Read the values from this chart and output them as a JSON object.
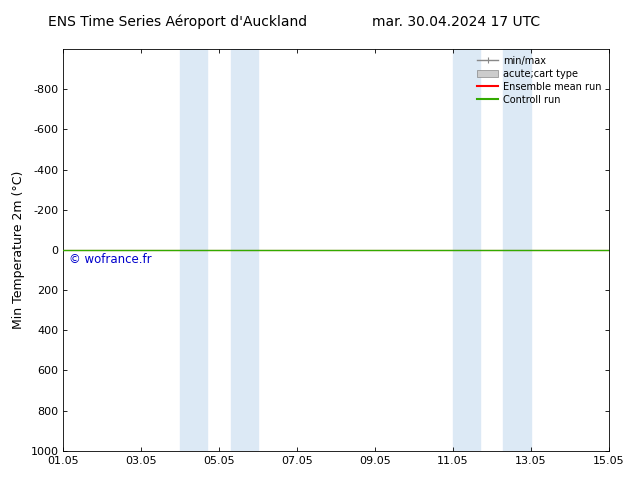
{
  "title_left": "ENS Time Series Aéroport d'Auckland",
  "title_right": "mar. 30.04.2024 17 UTC",
  "ylabel": "Min Temperature 2m (°C)",
  "ylim_top": -1000,
  "ylim_bottom": 1000,
  "xlim": [
    0,
    14
  ],
  "xtick_positions": [
    0,
    2,
    4,
    6,
    8,
    10,
    12,
    14
  ],
  "xtick_labels": [
    "01.05",
    "03.05",
    "05.05",
    "07.05",
    "09.05",
    "11.05",
    "13.05",
    "15.05"
  ],
  "ytick_positions": [
    -800,
    -600,
    -400,
    -200,
    0,
    200,
    400,
    600,
    800,
    1000
  ],
  "ytick_labels": [
    "-800",
    "-600",
    "-400",
    "-200",
    "0",
    "200",
    "400",
    "600",
    "800",
    "1000"
  ],
  "blue_bands": [
    [
      3.0,
      3.7
    ],
    [
      4.3,
      5.0
    ],
    [
      10.0,
      10.7
    ],
    [
      11.3,
      12.0
    ]
  ],
  "blue_band_color": "#dce9f5",
  "green_line_y": 0,
  "green_line_color": "#33aa00",
  "red_line_color": "#ff0000",
  "copyright_text": "© wofrance.fr",
  "copyright_color": "#0000cc",
  "background_color": "#ffffff",
  "legend_labels": [
    "min/max",
    "acute;cart type",
    "Ensemble mean run",
    "Controll run"
  ],
  "legend_line_colors": [
    "#888888",
    "#cccccc",
    "#ff0000",
    "#33aa00"
  ],
  "title_fontsize": 10,
  "axis_label_fontsize": 9,
  "tick_fontsize": 8
}
